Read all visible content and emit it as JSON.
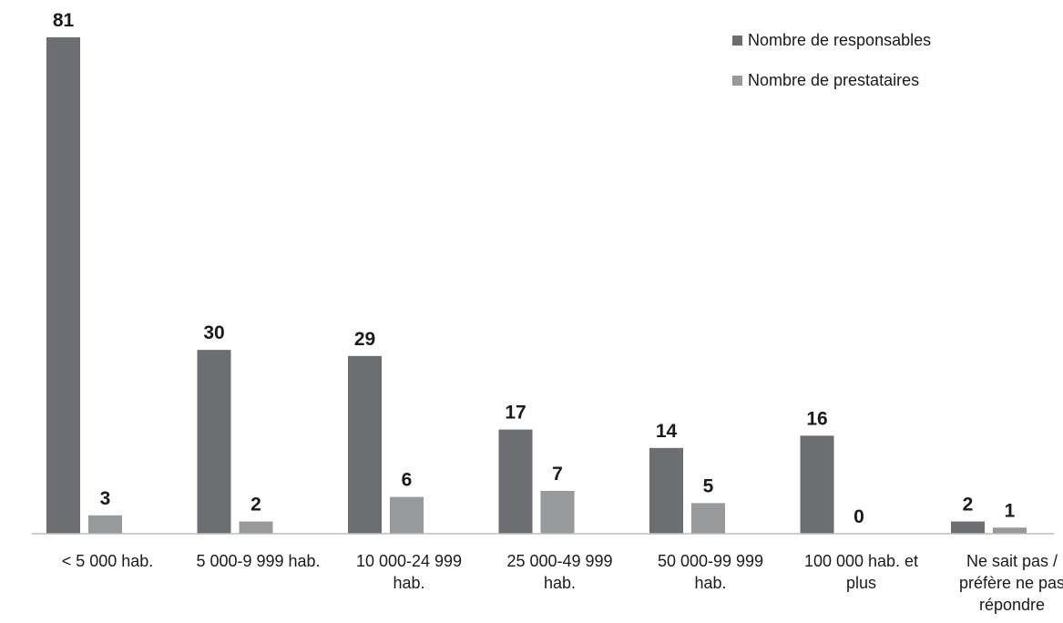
{
  "chart_data": {
    "type": "bar",
    "title": "",
    "xlabel": "",
    "ylabel": "",
    "ylim": [
      0,
      81
    ],
    "grid": false,
    "legend_position": "top-right",
    "categories": [
      [
        "< 5 000 hab."
      ],
      [
        "5 000-9 999 hab."
      ],
      [
        "10 000-24 999",
        "hab."
      ],
      [
        "25 000-49 999",
        "hab."
      ],
      [
        "50 000-99 999",
        "hab."
      ],
      [
        "100 000 hab. et",
        "plus"
      ],
      [
        "Ne sait pas /",
        "préfère ne pas",
        "répondre"
      ]
    ],
    "series": [
      {
        "name": "Nombre de responsables",
        "color": "#6d6e71",
        "values": [
          81,
          30,
          29,
          17,
          14,
          16,
          2
        ]
      },
      {
        "name": "Nombre de prestataires",
        "color": "#98999b",
        "values": [
          3,
          2,
          6,
          7,
          5,
          0,
          1
        ]
      }
    ]
  }
}
